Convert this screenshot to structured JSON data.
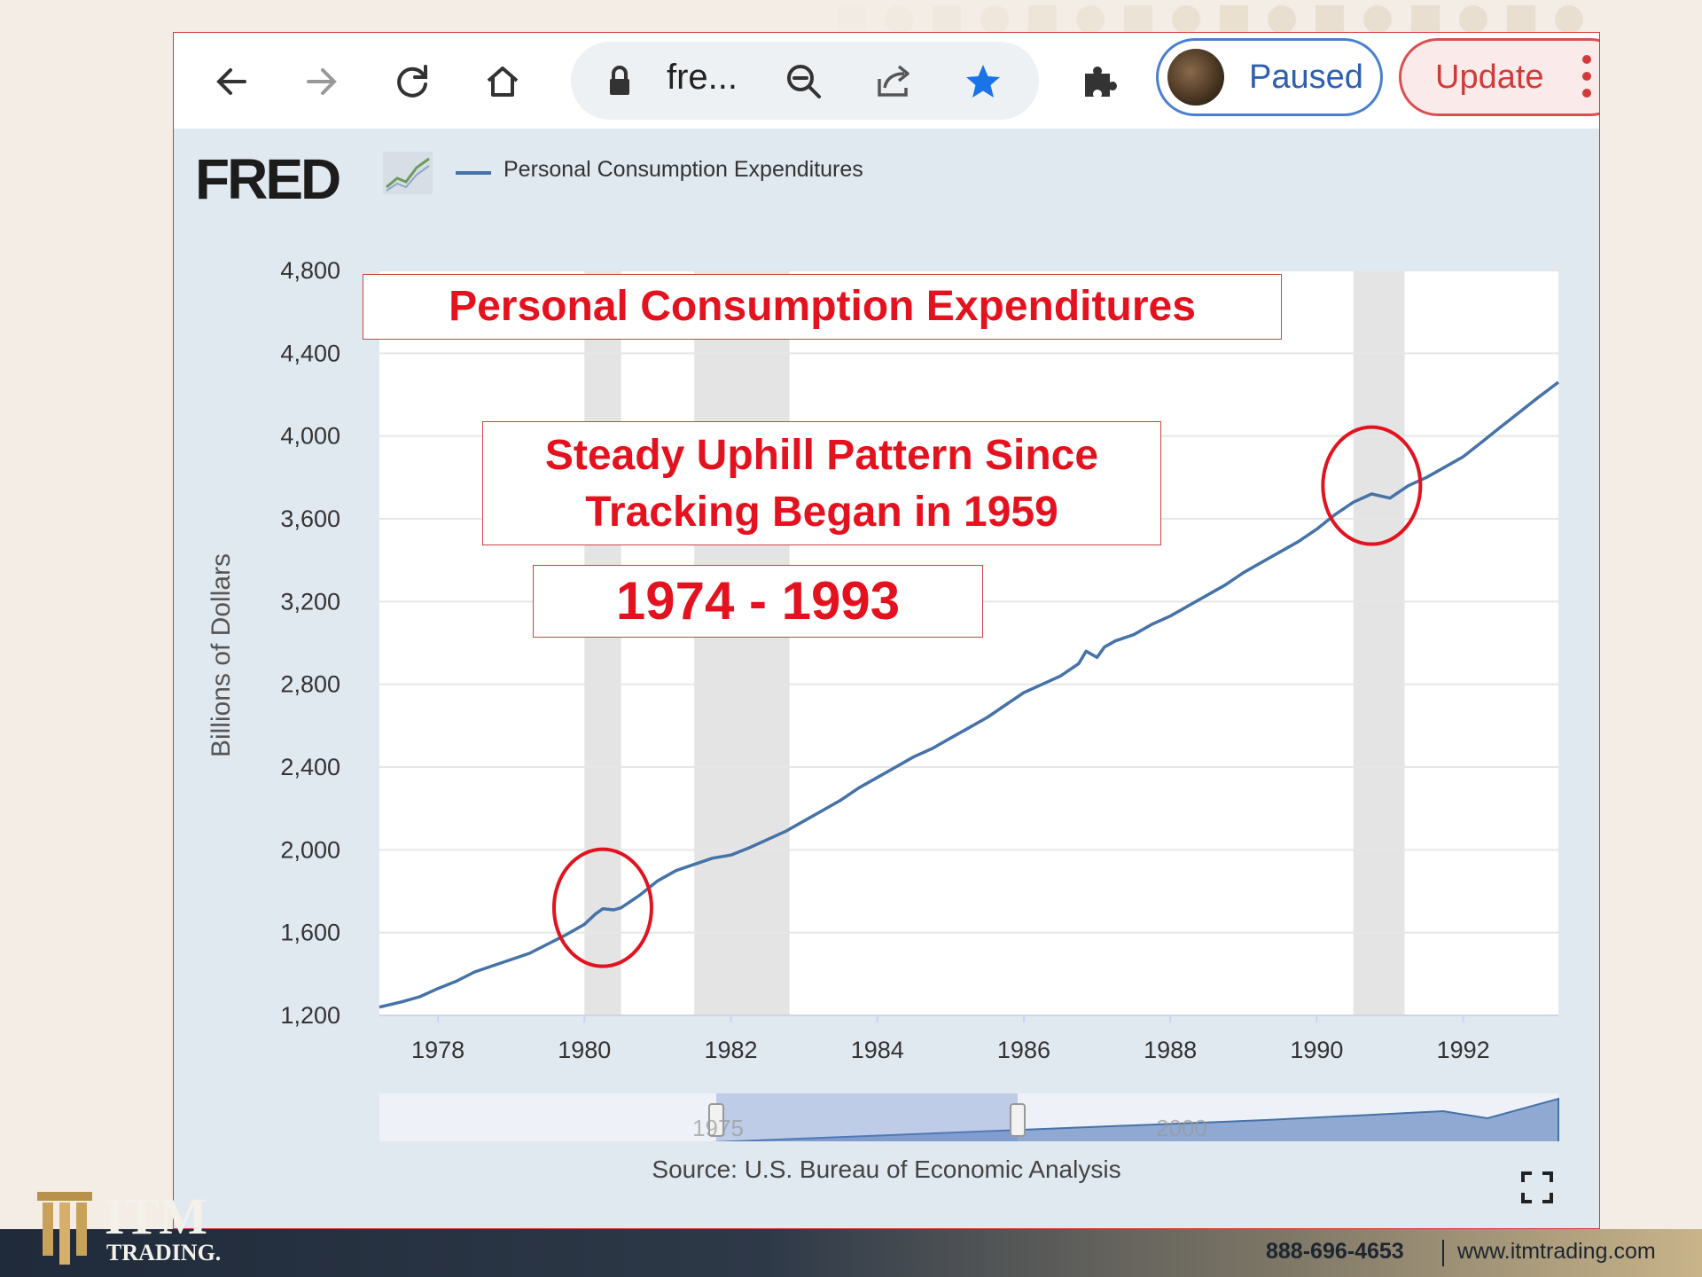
{
  "browser": {
    "url_text": "fre...",
    "profile_label": "Paused",
    "update_label": "Update"
  },
  "header": {
    "logo_text": "FRED",
    "legend_label": "Personal Consumption Expenditures"
  },
  "annotations": {
    "title": "Personal Consumption Expenditures",
    "pattern_line1": "Steady Uphill Pattern Since",
    "pattern_line2": "Tracking Began in 1959",
    "years": "1974 - 1993"
  },
  "chart_data": {
    "type": "line",
    "ylabel": "Billions of Dollars",
    "xlim": [
      1977.2,
      1993.3
    ],
    "ylim": [
      1200,
      4800
    ],
    "yticks": [
      1200,
      1600,
      2000,
      2400,
      2800,
      3200,
      3600,
      4000,
      4400,
      4800
    ],
    "ytick_labels": [
      "1,200",
      "1,600",
      "2,000",
      "2,400",
      "2,800",
      "3,200",
      "3,600",
      "4,000",
      "4,400",
      "4,800"
    ],
    "xticks": [
      1978,
      1980,
      1982,
      1984,
      1986,
      1988,
      1990,
      1992
    ],
    "xtick_labels": [
      "1978",
      "1980",
      "1982",
      "1984",
      "1986",
      "1988",
      "1990",
      "1992"
    ],
    "recessions": [
      [
        1980.0,
        1980.5
      ],
      [
        1981.5,
        1982.8
      ],
      [
        1990.5,
        1991.2
      ]
    ],
    "series": [
      {
        "name": "Personal Consumption Expenditures",
        "color": "#4572a7",
        "points": [
          [
            1977.2,
            1240
          ],
          [
            1977.5,
            1265
          ],
          [
            1977.75,
            1290
          ],
          [
            1978.0,
            1330
          ],
          [
            1978.25,
            1365
          ],
          [
            1978.5,
            1410
          ],
          [
            1978.75,
            1440
          ],
          [
            1979.0,
            1470
          ],
          [
            1979.25,
            1500
          ],
          [
            1979.5,
            1545
          ],
          [
            1979.75,
            1590
          ],
          [
            1980.0,
            1640
          ],
          [
            1980.15,
            1690
          ],
          [
            1980.25,
            1715
          ],
          [
            1980.4,
            1710
          ],
          [
            1980.5,
            1720
          ],
          [
            1980.75,
            1780
          ],
          [
            1981.0,
            1850
          ],
          [
            1981.25,
            1900
          ],
          [
            1981.5,
            1930
          ],
          [
            1981.75,
            1960
          ],
          [
            1982.0,
            1975
          ],
          [
            1982.25,
            2010
          ],
          [
            1982.5,
            2050
          ],
          [
            1982.75,
            2090
          ],
          [
            1983.0,
            2140
          ],
          [
            1983.25,
            2190
          ],
          [
            1983.5,
            2240
          ],
          [
            1983.75,
            2300
          ],
          [
            1984.0,
            2350
          ],
          [
            1984.25,
            2400
          ],
          [
            1984.5,
            2450
          ],
          [
            1984.75,
            2490
          ],
          [
            1985.0,
            2540
          ],
          [
            1985.25,
            2590
          ],
          [
            1985.5,
            2640
          ],
          [
            1985.75,
            2700
          ],
          [
            1986.0,
            2760
          ],
          [
            1986.25,
            2800
          ],
          [
            1986.5,
            2840
          ],
          [
            1986.75,
            2900
          ],
          [
            1986.85,
            2960
          ],
          [
            1987.0,
            2930
          ],
          [
            1987.1,
            2980
          ],
          [
            1987.25,
            3010
          ],
          [
            1987.5,
            3040
          ],
          [
            1987.75,
            3090
          ],
          [
            1988.0,
            3130
          ],
          [
            1988.25,
            3180
          ],
          [
            1988.5,
            3230
          ],
          [
            1988.75,
            3280
          ],
          [
            1989.0,
            3340
          ],
          [
            1989.25,
            3390
          ],
          [
            1989.5,
            3440
          ],
          [
            1989.75,
            3490
          ],
          [
            1990.0,
            3550
          ],
          [
            1990.25,
            3620
          ],
          [
            1990.5,
            3680
          ],
          [
            1990.75,
            3720
          ],
          [
            1991.0,
            3700
          ],
          [
            1991.25,
            3760
          ],
          [
            1991.5,
            3800
          ],
          [
            1991.75,
            3850
          ],
          [
            1992.0,
            3900
          ],
          [
            1992.25,
            3970
          ],
          [
            1992.5,
            4040
          ],
          [
            1992.75,
            4110
          ],
          [
            1993.0,
            4180
          ],
          [
            1993.3,
            4260
          ]
        ]
      }
    ],
    "navigator": {
      "tick_labels": [
        "1975",
        "2000"
      ],
      "selected_range": [
        1977.2,
        1993.3
      ]
    },
    "source": "Source: U.S. Bureau of Economic Analysis"
  },
  "footer": {
    "logo_line1": "ITM",
    "logo_line2": "TRADING.",
    "phone": "888-696-4653",
    "url": "www.itmtrading.com"
  },
  "colors": {
    "line": "#4572a7",
    "annotation_red": "#e4121e",
    "recession_shade": "#e4e4e4",
    "plot_bg": "#ffffff"
  }
}
